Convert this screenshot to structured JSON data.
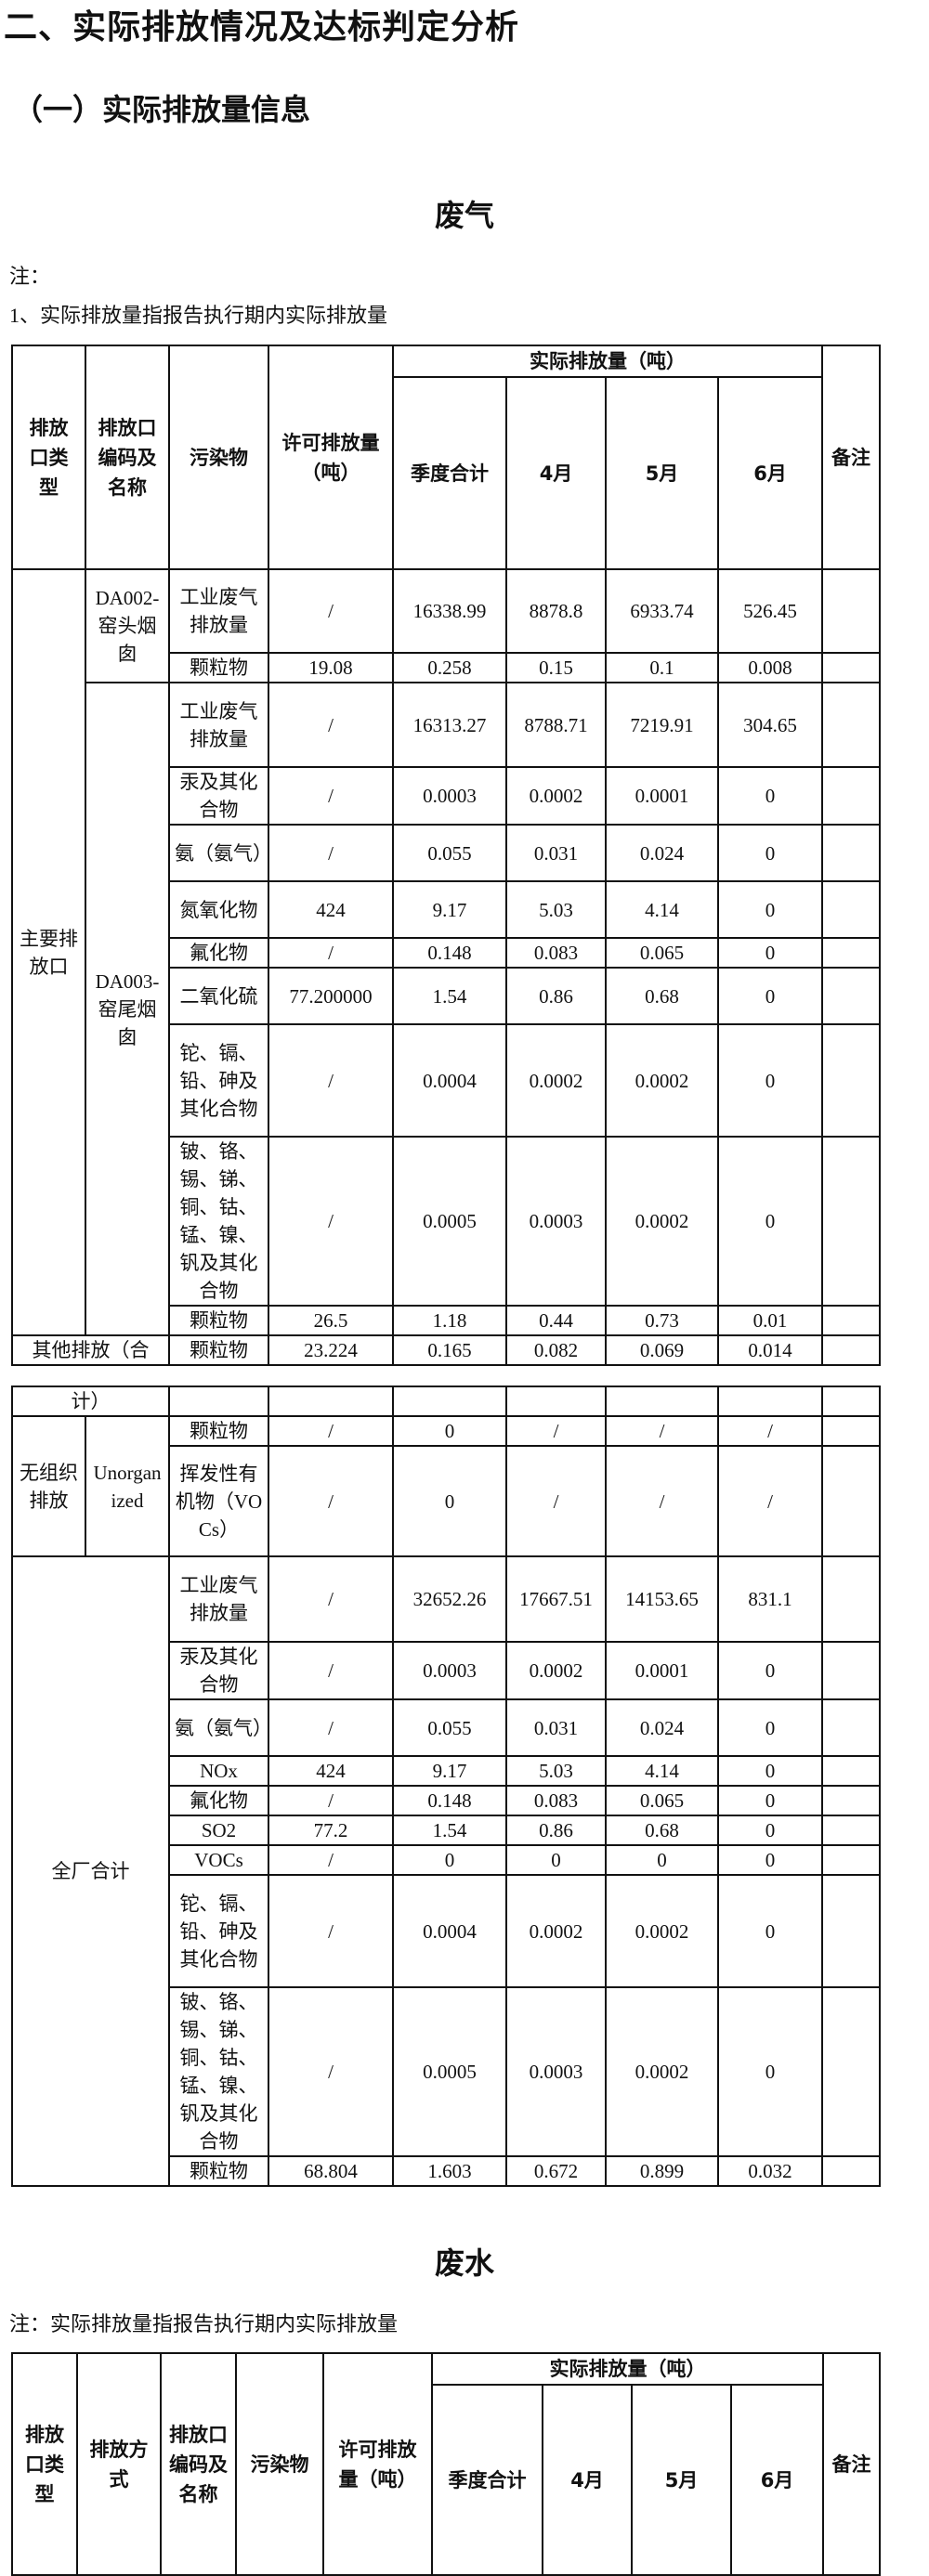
{
  "page": {
    "title": "二、实际排放情况及达标判定分析",
    "subtitle": "（一）实际排放量信息"
  },
  "air": {
    "title": "废气",
    "note_label": "注：",
    "note": "1、实际排放量指报告执行期内实际排放量",
    "headers": {
      "type": "排放口类型",
      "code": "排放口编码及名称",
      "pollutant": "污染物",
      "permit": "许可排放量（吨）",
      "actual": "实际排放量（吨）",
      "total": "季度合计",
      "m1": "4月",
      "m2": "5月",
      "m3": "6月",
      "remark": "备注"
    },
    "main_group": "主要排放口",
    "outlets": [
      {
        "name": "DA002-窑头烟囱",
        "rows": [
          [
            "工业废气排放量",
            "/",
            "16338.99",
            "8878.8",
            "6933.74",
            "526.45",
            ""
          ],
          [
            "颗粒物",
            "19.08",
            "0.258",
            "0.15",
            "0.1",
            "0.008",
            ""
          ]
        ]
      },
      {
        "name": "DA003-窑尾烟囱",
        "rows": [
          [
            "工业废气排放量",
            "/",
            "16313.27",
            "8788.71",
            "7219.91",
            "304.65",
            ""
          ],
          [
            "汞及其化合物",
            "/",
            "0.0003",
            "0.0002",
            "0.0001",
            "0",
            ""
          ],
          [
            "氨（氨气）",
            "/",
            "0.055",
            "0.031",
            "0.024",
            "0",
            ""
          ],
          [
            "氮氧化物",
            "424",
            "9.17",
            "5.03",
            "4.14",
            "0",
            ""
          ],
          [
            "氟化物",
            "/",
            "0.148",
            "0.083",
            "0.065",
            "0",
            ""
          ],
          [
            "二氧化硫",
            "77.200000",
            "1.54",
            "0.86",
            "0.68",
            "0",
            ""
          ],
          [
            "铊、镉、铅、砷及其化合物",
            "/",
            "0.0004",
            "0.0002",
            "0.0002",
            "0",
            ""
          ],
          [
            "铍、铬、锡、锑、铜、钴、锰、镍、钒及其化合物",
            "/",
            "0.0005",
            "0.0003",
            "0.0002",
            "0",
            ""
          ],
          [
            "颗粒物",
            "26.5",
            "1.18",
            "0.44",
            "0.73",
            "0.01",
            ""
          ]
        ]
      }
    ],
    "other": {
      "label_part1": "其他排放（合",
      "label_part2": "计）",
      "row": [
        "颗粒物",
        "23.224",
        "0.165",
        "0.082",
        "0.069",
        "0.014",
        ""
      ]
    },
    "unorganized": {
      "group": "无组织排放",
      "name": "Unorganized",
      "rows": [
        [
          "颗粒物",
          "/",
          "0",
          "/",
          "/",
          "/",
          ""
        ],
        [
          "挥发性有机物（VOCs）",
          "/",
          "0",
          "/",
          "/",
          "/",
          ""
        ]
      ]
    },
    "plant_total": {
      "group": "全厂合计",
      "rows": [
        [
          "工业废气排放量",
          "/",
          "32652.26",
          "17667.51",
          "14153.65",
          "831.1",
          ""
        ],
        [
          "汞及其化合物",
          "/",
          "0.0003",
          "0.0002",
          "0.0001",
          "0",
          ""
        ],
        [
          "氨（氨气）",
          "/",
          "0.055",
          "0.031",
          "0.024",
          "0",
          ""
        ],
        [
          "NOx",
          "424",
          "9.17",
          "5.03",
          "4.14",
          "0",
          ""
        ],
        [
          "氟化物",
          "/",
          "0.148",
          "0.083",
          "0.065",
          "0",
          ""
        ],
        [
          "SO2",
          "77.2",
          "1.54",
          "0.86",
          "0.68",
          "0",
          ""
        ],
        [
          "VOCs",
          "/",
          "0",
          "0",
          "0",
          "0",
          ""
        ],
        [
          "铊、镉、铅、砷及其化合物",
          "/",
          "0.0004",
          "0.0002",
          "0.0002",
          "0",
          ""
        ],
        [
          "铍、铬、锡、锑、铜、钴、锰、镍、钒及其化合物",
          "/",
          "0.0005",
          "0.0003",
          "0.0002",
          "0",
          ""
        ],
        [
          "颗粒物",
          "68.804",
          "1.603",
          "0.672",
          "0.899",
          "0.032",
          ""
        ]
      ]
    }
  },
  "water": {
    "title": "废水",
    "note": "注：实际排放量指报告执行期内实际排放量",
    "headers": {
      "type": "排放口类型",
      "method": "排放方式",
      "code": "排放口编码及名称",
      "pollutant": "污染物",
      "permit": "许可排放量（吨）",
      "actual": "实际排放量（吨）",
      "total": "季度合计",
      "m1": "4月",
      "m2": "5月",
      "m3": "6月",
      "remark": "备注"
    }
  }
}
